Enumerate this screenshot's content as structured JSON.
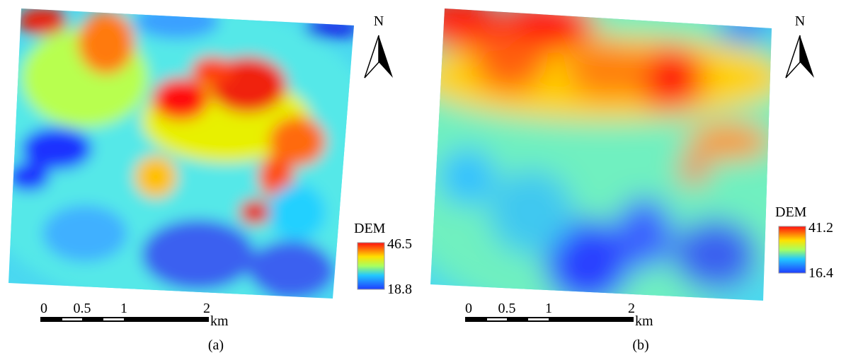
{
  "panels": [
    {
      "label": "(a)",
      "north": "N",
      "legend": {
        "title": "DEM",
        "max": "46.5",
        "min": "18.8"
      },
      "scale": {
        "ticks": [
          "0",
          "0.5",
          "1",
          "2"
        ],
        "unit": "km"
      }
    },
    {
      "label": "(b)",
      "north": "N",
      "legend": {
        "title": "DEM",
        "max": "41.2",
        "min": "16.4"
      },
      "scale": {
        "ticks": [
          "0",
          "0.5",
          "1",
          "2"
        ],
        "unit": "km"
      }
    }
  ]
}
